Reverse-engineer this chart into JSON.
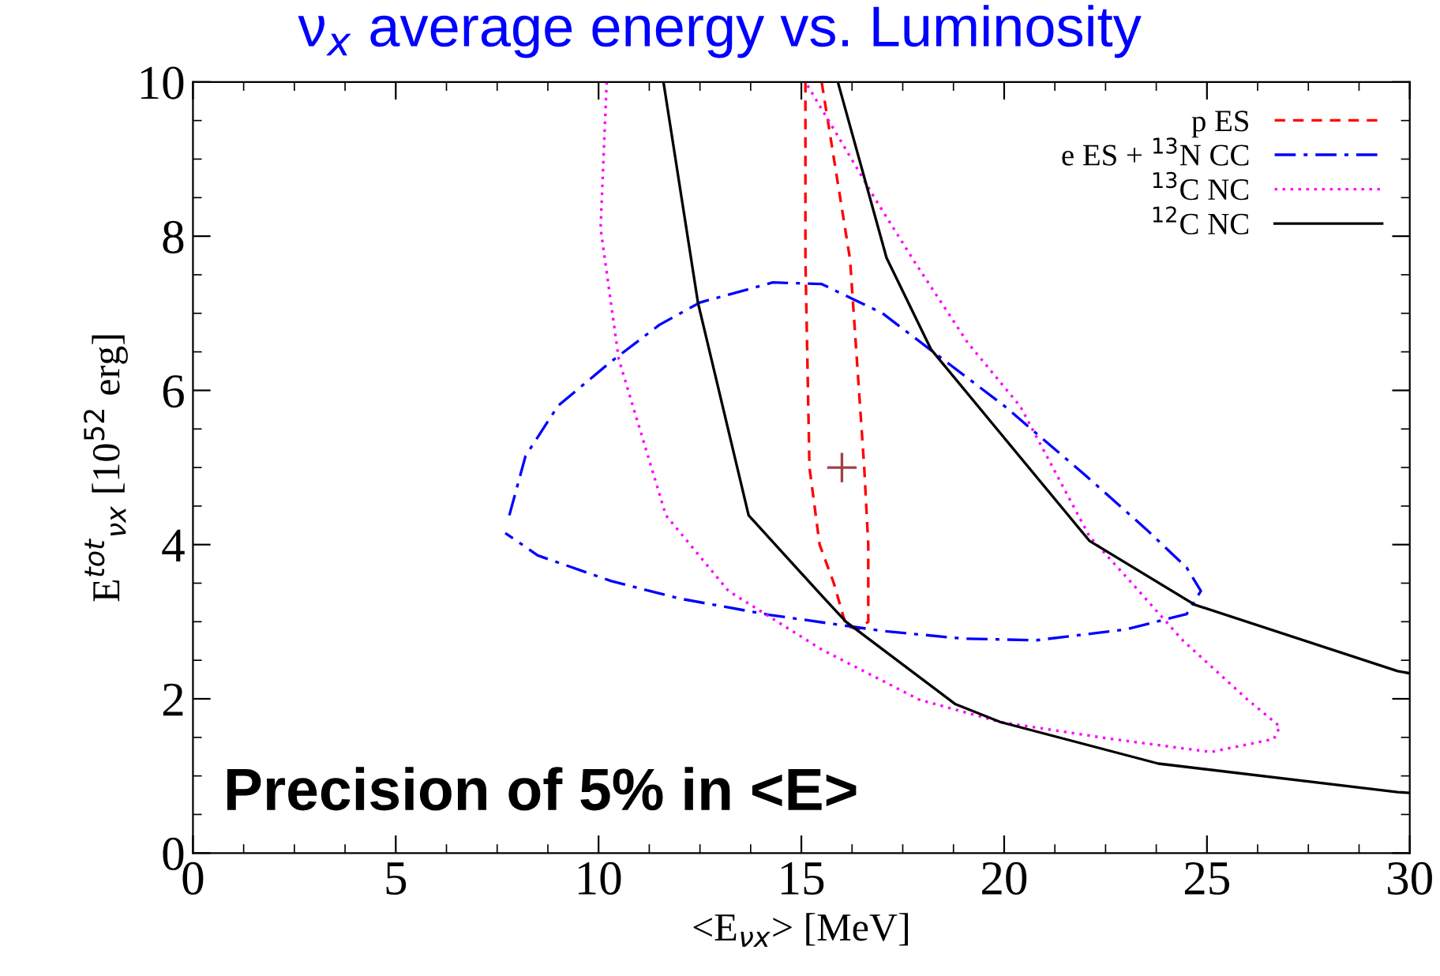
{
  "chart_data": {
    "type": "line",
    "title": "ν$_{x}$ average energy vs. Luminosity",
    "xlabel": "<E$_{νx}$> [MeV]",
    "ylabel": "E$^{tot}$$_{νx}$ [10$^{52}$ erg]",
    "annotations": [
      "Precision of 5% in <E>"
    ],
    "xlim": [
      0,
      30
    ],
    "ylim": [
      0,
      10
    ],
    "xticks": [
      0,
      5,
      10,
      15,
      20,
      25,
      30
    ],
    "yticks": [
      0,
      2,
      4,
      6,
      8,
      10
    ],
    "grid": false,
    "legend": "top right",
    "series": [
      {
        "name": "p ES",
        "color": "#ff0000",
        "line_style": "dashed",
        "x": [
          15.1,
          15.1,
          15.2,
          15.45,
          15.8,
          16.1,
          16.4,
          16.65,
          16.65,
          16.55,
          16.2,
          15.5
        ],
        "values": [
          10,
          7.7,
          5.0,
          4.0,
          3.5,
          2.95,
          2.9,
          3.0,
          4.0,
          5.0,
          7.7,
          10
        ]
      },
      {
        "name": "e ES + $^{13}$N CC",
        "color": "#0000ff",
        "line_style": "dashdot",
        "x": [
          7.8,
          8.2,
          9.0,
          10.3,
          11.5,
          12.5,
          14.3,
          15.5,
          17.0,
          18.5,
          20.0,
          22.0,
          23.5,
          24.5,
          24.85,
          24.5,
          23.0,
          20.8,
          19.0,
          17.0,
          14.2,
          12.0,
          10.3,
          8.5,
          7.7
        ],
        "values": [
          4.38,
          5.15,
          5.8,
          6.37,
          6.85,
          7.14,
          7.4,
          7.38,
          7.0,
          6.4,
          5.8,
          4.9,
          4.2,
          3.7,
          3.4,
          3.1,
          2.9,
          2.76,
          2.78,
          2.88,
          3.09,
          3.3,
          3.53,
          3.86,
          4.15
        ]
      },
      {
        "name": "$^{13}$C NC",
        "color": "#ff00ff",
        "line_style": "dotted",
        "x": [
          10.2,
          10.05,
          10.5,
          11.66,
          13.2,
          15.5,
          17.9,
          19.9,
          22.5,
          25.1,
          26.65,
          26.8,
          26.0,
          24.4,
          23.2,
          22.1,
          20.4,
          19.1,
          17.8,
          16.8,
          15.9,
          15.1
        ],
        "values": [
          10,
          8.1,
          6.4,
          4.38,
          3.4,
          2.64,
          1.99,
          1.7,
          1.49,
          1.31,
          1.48,
          1.64,
          1.99,
          2.76,
          3.47,
          4.11,
          5.79,
          6.62,
          7.66,
          8.5,
          9.3,
          10
        ]
      },
      {
        "name": "$^{12}$C NC",
        "color": "#000000",
        "line_style": "solid",
        "x": [
          11.6,
          12.45,
          13.7,
          15.5,
          16.1,
          18.8,
          19.9,
          23.8,
          29.7,
          30,
          null,
          15.9,
          17.1,
          18.2,
          22.1,
          24.7,
          29.7,
          30
        ],
        "values": [
          10,
          7.14,
          4.38,
          3.34,
          3.0,
          1.93,
          1.7,
          1.16,
          0.79,
          0.78,
          null,
          10,
          7.72,
          6.53,
          4.05,
          3.22,
          2.36,
          2.33
        ]
      },
      {
        "type": "scatter",
        "color": "#a04048",
        "marker": "cross",
        "x": [
          16
        ],
        "values": [
          5
        ]
      }
    ]
  }
}
